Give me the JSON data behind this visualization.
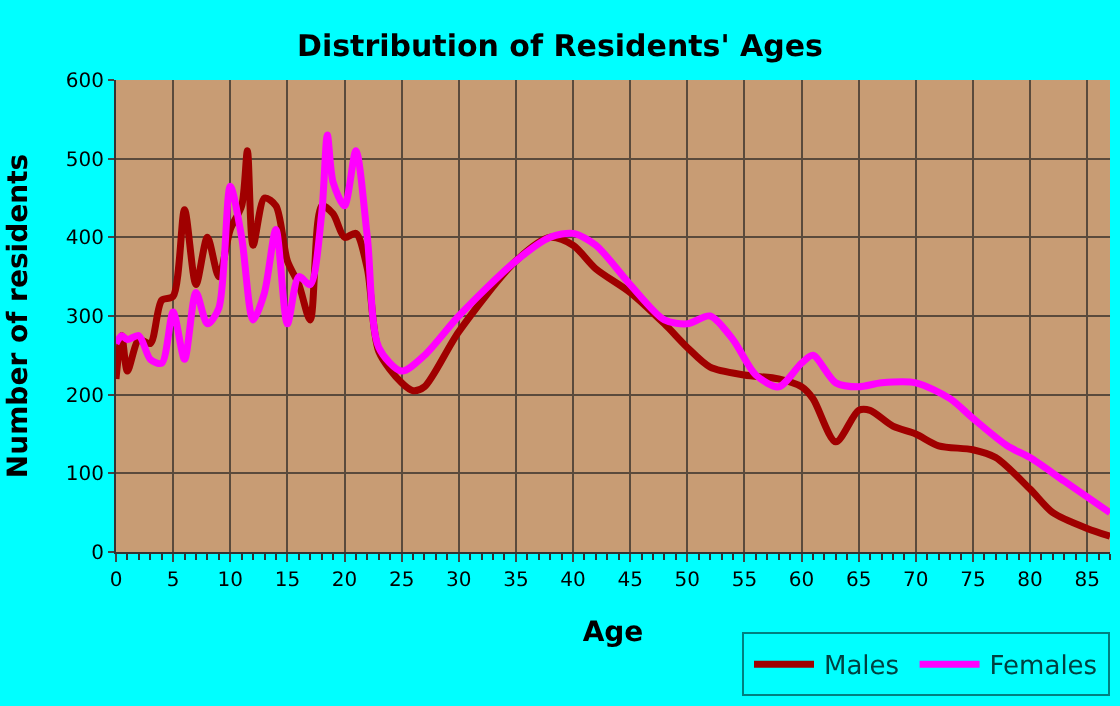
{
  "chart_data": {
    "type": "line",
    "title": "Distribution of Residents' Ages",
    "xlabel": "Age",
    "ylabel": "Number of residents",
    "xlim": [
      0,
      87
    ],
    "xticks": [
      0,
      5,
      10,
      15,
      20,
      25,
      30,
      35,
      40,
      45,
      50,
      55,
      60,
      65,
      70,
      75,
      80,
      85
    ],
    "ylim": [
      0,
      600
    ],
    "yticks": [
      0,
      100,
      200,
      300,
      400,
      500,
      600
    ],
    "grid": true,
    "legend": "bottom right",
    "marker": "none",
    "line_style": "solid",
    "series": [
      {
        "name": "Males",
        "color": "#a00000",
        "x": [
          0,
          0.5,
          1,
          2,
          3,
          4,
          5,
          6,
          7,
          8,
          9,
          10,
          11,
          11.5,
          12,
          13,
          14,
          15,
          16,
          17,
          18,
          19,
          20,
          21,
          22,
          23,
          25,
          26,
          27,
          30,
          35,
          38,
          40,
          42,
          45,
          48,
          50,
          52,
          55,
          58,
          60,
          61,
          63,
          65,
          66,
          68,
          70,
          72,
          75,
          77,
          80,
          82,
          85,
          87
        ],
        "values": [
          220,
          275,
          230,
          270,
          265,
          320,
          325,
          435,
          340,
          400,
          350,
          410,
          440,
          510,
          390,
          450,
          440,
          370,
          340,
          295,
          440,
          430,
          400,
          405,
          360,
          255,
          215,
          205,
          210,
          280,
          370,
          400,
          390,
          360,
          330,
          290,
          260,
          235,
          225,
          220,
          210,
          195,
          140,
          180,
          180,
          160,
          150,
          135,
          130,
          120,
          80,
          50,
          30,
          20
        ]
      },
      {
        "name": "Females",
        "color": "#ff00ff",
        "x": [
          0,
          0.5,
          1,
          2,
          3,
          4,
          5,
          6,
          7,
          8,
          9,
          10,
          11,
          12,
          13,
          14,
          15,
          16,
          17,
          18,
          18.5,
          19,
          20,
          21,
          22,
          23,
          25,
          27,
          30,
          35,
          38,
          40,
          42,
          45,
          48,
          50,
          52,
          54,
          56,
          58,
          60,
          61,
          63,
          65,
          67,
          70,
          73,
          75,
          78,
          80,
          83,
          87
        ],
        "values": [
          265,
          275,
          270,
          275,
          245,
          240,
          305,
          245,
          330,
          290,
          310,
          465,
          400,
          295,
          330,
          410,
          290,
          350,
          340,
          430,
          530,
          470,
          440,
          510,
          400,
          260,
          230,
          250,
          300,
          370,
          400,
          405,
          390,
          340,
          295,
          290,
          300,
          270,
          225,
          210,
          240,
          250,
          215,
          210,
          215,
          215,
          195,
          170,
          135,
          120,
          90,
          50
        ]
      }
    ]
  }
}
